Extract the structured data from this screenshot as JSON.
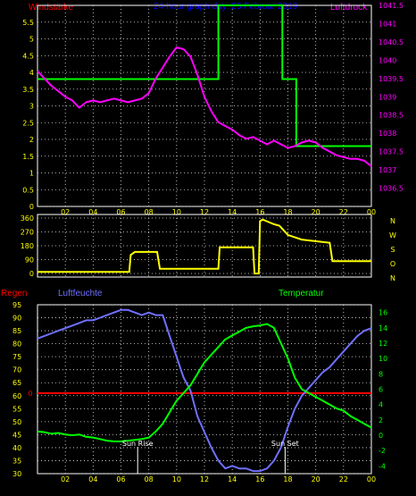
{
  "colors": {
    "background": "#000000",
    "grid_dot": "#e6e6e6",
    "axis": "#ffffff",
    "wind": "#00ff00",
    "pressure": "#ff00ff",
    "direction": "#ffff00",
    "rain": "#ff0000",
    "humidity": "#7070ff",
    "temperature": "#00ff00",
    "title": "#0000ff",
    "wind_label": "#ff0000",
    "pressure_label": "#ff00ff",
    "tick_yellow": "#ffff00",
    "tick_magenta": "#ff00ff",
    "tick_green": "#00ff00",
    "tick_blue": "#7070ff",
    "tick_red": "#ff0000",
    "compass": "#ffff00"
  },
  "header": {
    "left": "Windstärke",
    "title": "24-hour graph day:  25 Februar 2019",
    "right": "Luftdruck"
  },
  "x_ticks": [
    "02",
    "04",
    "06",
    "08",
    "10",
    "12",
    "14",
    "16",
    "18",
    "20",
    "22",
    "00"
  ],
  "compass": [
    "N",
    "W",
    "S",
    "O",
    "N"
  ],
  "panel3_labels": {
    "rain": "Regen",
    "humidity": "Luftfeuchte",
    "temperature": "Temperatur",
    "sunrise": "Sun Rise",
    "sunset": "Sun Set"
  },
  "chart_data": [
    {
      "type": "line",
      "title": "24-hour graph day:  25 Februar 2019",
      "ylabel": "Windstärke",
      "y2label": "Luftdruck",
      "x_unit": "hour",
      "xlim": [
        0,
        24
      ],
      "ylim": [
        0,
        6
      ],
      "y2lim": [
        1036,
        1041.5
      ],
      "y_ticks": [
        "0",
        "0.5",
        "1",
        "1.5",
        "2",
        "2.5",
        "3",
        "3.5",
        "4",
        "4.5",
        "5",
        "5.5"
      ],
      "y2_ticks": [
        "1036.5",
        "1037",
        "1037.5",
        "1038",
        "1038.5",
        "1039",
        "1039.5",
        "1040",
        "1040.5",
        "1041",
        "1041.5"
      ],
      "series": [
        {
          "name": "Windstärke",
          "axis": "left",
          "x": [
            0,
            13,
            13,
            17.6,
            17.6,
            18.6,
            18.6,
            24
          ],
          "y": [
            3.8,
            3.8,
            6,
            6,
            3.8,
            3.8,
            1.8,
            1.8
          ]
        },
        {
          "name": "Luftdruck",
          "axis": "right",
          "x": [
            0,
            0.5,
            1,
            1.5,
            2,
            2.5,
            3,
            3.5,
            4,
            4.5,
            5,
            5.5,
            6,
            6.5,
            7,
            7.5,
            8,
            8.5,
            9,
            9.5,
            10,
            10.5,
            11,
            11.5,
            12,
            12.5,
            13,
            13.5,
            14,
            14.5,
            15,
            15.5,
            16,
            16.5,
            17,
            17.5,
            18,
            18.5,
            19,
            19.5,
            20,
            20.5,
            21,
            21.5,
            22,
            22.5,
            23,
            23.5,
            24
          ],
          "y": [
            1039.7,
            1039.5,
            1039.3,
            1039.15,
            1039.0,
            1038.9,
            1038.7,
            1038.85,
            1038.9,
            1038.85,
            1038.9,
            1038.95,
            1038.9,
            1038.85,
            1038.9,
            1038.95,
            1039.1,
            1039.5,
            1039.8,
            1040.1,
            1040.35,
            1040.3,
            1040.1,
            1039.6,
            1039.0,
            1038.6,
            1038.3,
            1038.2,
            1038.1,
            1037.95,
            1037.85,
            1037.9,
            1037.8,
            1037.7,
            1037.8,
            1037.7,
            1037.6,
            1037.65,
            1037.75,
            1037.8,
            1037.75,
            1037.6,
            1037.5,
            1037.4,
            1037.35,
            1037.3,
            1037.3,
            1037.25,
            1037.1
          ]
        }
      ]
    },
    {
      "type": "line",
      "title": "",
      "ylabel": "",
      "xlim": [
        0,
        24
      ],
      "ylim": [
        0,
        360
      ],
      "y_ticks": [
        "0",
        "90",
        "180",
        "270",
        "360"
      ],
      "series": [
        {
          "name": "",
          "x": [
            0,
            6.6,
            6.7,
            7.0,
            8.6,
            8.8,
            12.9,
            13.0,
            13.1,
            15.5,
            15.6,
            15.8,
            15.9,
            16.0,
            16.2,
            17.0,
            17.4,
            18.0,
            19.0,
            21.0,
            21.2,
            24
          ],
          "y": [
            10,
            10,
            120,
            140,
            140,
            30,
            30,
            30,
            170,
            170,
            0,
            0,
            0,
            340,
            350,
            320,
            310,
            250,
            220,
            200,
            80,
            80
          ]
        }
      ]
    },
    {
      "type": "line",
      "title": "",
      "ylabel": "Luftfeuchte",
      "y2label": "Temperatur",
      "xlim": [
        0,
        24
      ],
      "ylim": [
        30,
        95
      ],
      "y2lim": [
        -5,
        17
      ],
      "y_ticks": [
        "30",
        "35",
        "40",
        "45",
        "50",
        "55",
        "60",
        "65",
        "70",
        "75",
        "80",
        "85",
        "90",
        "95"
      ],
      "y2_ticks": [
        "-4",
        "-2",
        "0",
        "2",
        "4",
        "6",
        "8",
        "10",
        "12",
        "14",
        "16"
      ],
      "annotations": [
        "Sun Rise",
        "Sun Set"
      ],
      "sunrise_hour": 7.2,
      "sunset_hour": 17.8,
      "rain_label": "Regen",
      "rain_axis_value": "0",
      "series": [
        {
          "name": "Luftfeuchte",
          "axis": "left",
          "x": [
            0,
            0.5,
            1,
            1.5,
            2,
            2.5,
            3,
            3.5,
            4,
            4.5,
            5,
            5.5,
            6,
            6.5,
            7,
            7.5,
            8,
            8.5,
            9,
            9.5,
            10,
            10.5,
            11,
            11.5,
            12,
            12.5,
            13,
            13.5,
            14,
            14.5,
            15,
            15.5,
            16,
            16.5,
            17,
            17.5,
            18,
            18.5,
            19,
            19.5,
            20,
            20.5,
            21,
            21.5,
            22,
            22.5,
            23,
            23.5,
            24
          ],
          "y": [
            82,
            83,
            84,
            85,
            86,
            87,
            88,
            89,
            89,
            90,
            91,
            92,
            93,
            93,
            92,
            91,
            92,
            91,
            91,
            83,
            75,
            67,
            62,
            52,
            46,
            40,
            35,
            32,
            33,
            32,
            32,
            31,
            31,
            32,
            35,
            40,
            48,
            55,
            60,
            63,
            66,
            69,
            71,
            74,
            77,
            80,
            83,
            85,
            86
          ]
        },
        {
          "name": "Temperatur",
          "axis": "right",
          "x": [
            0,
            0.5,
            1,
            1.5,
            2,
            2.5,
            3,
            3.5,
            4,
            4.5,
            5,
            5.5,
            6,
            6.5,
            7,
            7.5,
            8,
            8.5,
            9,
            9.5,
            10,
            10.5,
            11,
            11.5,
            12,
            12.5,
            13,
            13.5,
            14,
            14.5,
            15,
            15.5,
            16,
            16.5,
            17,
            17.5,
            18,
            18.5,
            19,
            19.5,
            20,
            20.5,
            21,
            21.5,
            22,
            22.5,
            23,
            23.5,
            24
          ],
          "y": [
            0.5,
            0.4,
            0.2,
            0.3,
            0.1,
            0.0,
            0.1,
            -0.2,
            -0.3,
            -0.5,
            -0.7,
            -0.8,
            -0.8,
            -0.7,
            -0.6,
            -0.5,
            -0.3,
            0.5,
            1.5,
            3.0,
            4.5,
            5.5,
            6.5,
            8.0,
            9.5,
            10.5,
            11.5,
            12.5,
            13.0,
            13.5,
            14.0,
            14.2,
            14.3,
            14.5,
            14.0,
            12.0,
            10.0,
            7.5,
            6.0,
            5.5,
            5.0,
            4.5,
            4.0,
            3.5,
            3.2,
            2.5,
            2.0,
            1.5,
            1.0
          ]
        }
      ]
    }
  ]
}
